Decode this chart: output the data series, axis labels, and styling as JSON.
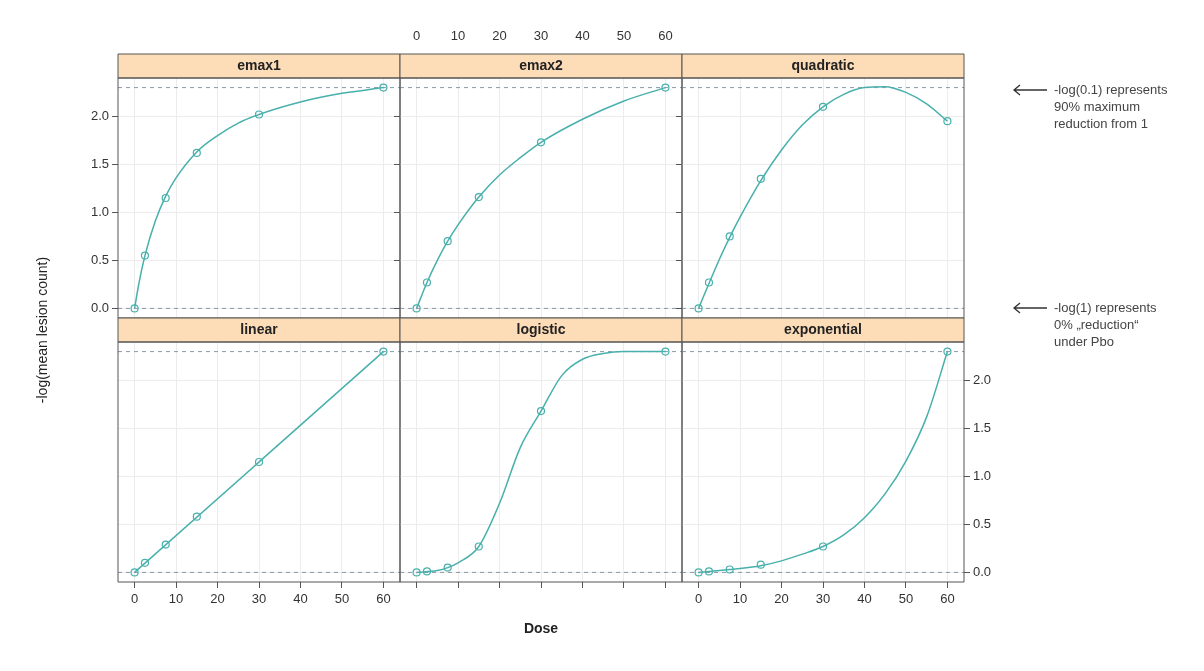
{
  "chart_data": [
    {
      "type": "line",
      "title": "emax1",
      "ylabel": "-log(mean lesion count)",
      "xlim": [
        -4,
        64
      ],
      "xticks": [
        0,
        10,
        20,
        30,
        40,
        50,
        60
      ],
      "ylim": [
        -0.1,
        2.4
      ],
      "yticks": [
        {
          "value": 0,
          "label": "0.0"
        },
        {
          "value": 0.5,
          "label": "0.5"
        },
        {
          "value": 1,
          "label": "1.0"
        },
        {
          "value": 1.5,
          "label": "1.5"
        },
        {
          "value": 2,
          "label": "2.0"
        }
      ],
      "grid": true,
      "tick_labels": "y",
      "ref_lines": [
        {
          "axis": "y",
          "value": 0,
          "color": "#8a98a8",
          "line_style": "dashed"
        },
        {
          "axis": "y",
          "value": 2.3,
          "color": "#8a98a8",
          "line_style": "dashed"
        }
      ],
      "series": [
        {
          "type": "line",
          "marker": "none",
          "color": "#48b0ac",
          "x": [
            0,
            1,
            2.5,
            5,
            7.5,
            10,
            15,
            20,
            25,
            30,
            40,
            50,
            60
          ],
          "values": [
            0,
            0.25,
            0.55,
            0.91,
            1.17,
            1.36,
            1.63,
            1.8,
            1.93,
            2.02,
            2.15,
            2.24,
            2.3
          ]
        },
        {
          "type": "scatter",
          "marker": "circle",
          "color": "#48b0ac",
          "x": [
            0,
            2.5,
            7.5,
            15,
            30,
            60
          ],
          "values": [
            0,
            0.55,
            1.15,
            1.62,
            2.02,
            2.3
          ]
        }
      ]
    },
    {
      "type": "line",
      "title": "emax2",
      "xlim": [
        -4,
        64
      ],
      "xticks": [
        0,
        10,
        20,
        30,
        40,
        50,
        60
      ],
      "ylim": [
        -0.1,
        2.4
      ],
      "yticks": [
        0,
        0.5,
        1,
        1.5,
        2
      ],
      "grid": true,
      "tick_labels": "x",
      "ref_lines": [
        {
          "axis": "y",
          "value": 0,
          "color": "#8a98a8",
          "line_style": "dashed"
        },
        {
          "axis": "y",
          "value": 2.3,
          "color": "#8a98a8",
          "line_style": "dashed"
        }
      ],
      "series": [
        {
          "type": "line",
          "marker": "none",
          "color": "#48b0ac",
          "x": [
            0,
            2.5,
            5,
            7.5,
            10,
            15,
            20,
            25,
            30,
            40,
            50,
            60
          ],
          "values": [
            0,
            0.27,
            0.5,
            0.7,
            0.87,
            1.16,
            1.39,
            1.57,
            1.73,
            1.97,
            2.16,
            2.3
          ]
        },
        {
          "type": "scatter",
          "marker": "circle",
          "color": "#48b0ac",
          "x": [
            0,
            2.5,
            7.5,
            15,
            30,
            60
          ],
          "values": [
            0,
            0.27,
            0.7,
            1.16,
            1.73,
            2.3
          ]
        }
      ]
    },
    {
      "type": "line",
      "title": "quadratic",
      "xlim": [
        -4,
        64
      ],
      "xticks": [
        0,
        10,
        20,
        30,
        40,
        50,
        60
      ],
      "ylim": [
        -0.1,
        2.4
      ],
      "yticks": [
        0,
        0.5,
        1,
        1.5,
        2
      ],
      "grid": true,
      "tick_labels": false,
      "ref_lines": [
        {
          "axis": "y",
          "value": 0,
          "color": "#8a98a8",
          "line_style": "dashed"
        },
        {
          "axis": "y",
          "value": 2.3,
          "color": "#8a98a8",
          "line_style": "dashed"
        }
      ],
      "annotations": [
        "-log(0.1) represents\n90% maximum\nreduction from 1",
        "-log(1) represents\n0% „reduction“\nunder Pbo"
      ],
      "series": [
        {
          "type": "line",
          "marker": "none",
          "color": "#48b0ac",
          "x": [
            0,
            2.5,
            5,
            7.5,
            10,
            15,
            20,
            25,
            30,
            35,
            40,
            45,
            50,
            55,
            60
          ],
          "values": [
            0,
            0.26,
            0.51,
            0.74,
            0.95,
            1.33,
            1.65,
            1.91,
            2.1,
            2.23,
            2.3,
            2.31,
            2.25,
            2.13,
            1.95
          ]
        },
        {
          "type": "scatter",
          "marker": "circle",
          "color": "#48b0ac",
          "x": [
            0,
            2.5,
            7.5,
            15,
            30,
            60
          ],
          "values": [
            0,
            0.27,
            0.75,
            1.35,
            2.1,
            1.95
          ]
        }
      ]
    },
    {
      "type": "line",
      "title": "linear",
      "xlim": [
        -4,
        64
      ],
      "xticks": [
        0,
        10,
        20,
        30,
        40,
        50,
        60
      ],
      "ylim": [
        -0.1,
        2.4
      ],
      "yticks": [
        0,
        0.5,
        1,
        1.5,
        2
      ],
      "grid": true,
      "tick_labels": "x",
      "ref_lines": [
        {
          "axis": "y",
          "value": 0,
          "color": "#8a98a8",
          "line_style": "dashed"
        },
        {
          "axis": "y",
          "value": 2.3,
          "color": "#8a98a8",
          "line_style": "dashed"
        }
      ],
      "series": [
        {
          "type": "line",
          "marker": "none",
          "color": "#48b0ac",
          "x": [
            0,
            60
          ],
          "values": [
            0,
            2.3
          ]
        },
        {
          "type": "scatter",
          "marker": "circle",
          "color": "#48b0ac",
          "x": [
            0,
            2.5,
            7.5,
            15,
            30,
            60
          ],
          "values": [
            0,
            0.1,
            0.29,
            0.58,
            1.15,
            2.3
          ]
        }
      ]
    },
    {
      "type": "line",
      "title": "logistic",
      "xlabel": "Dose",
      "xlim": [
        -4,
        64
      ],
      "xticks": [
        0,
        10,
        20,
        30,
        40,
        50,
        60
      ],
      "ylim": [
        -0.1,
        2.4
      ],
      "yticks": [
        0,
        0.5,
        1,
        1.5,
        2
      ],
      "grid": true,
      "tick_labels": false,
      "ref_lines": [
        {
          "axis": "y",
          "value": 0,
          "color": "#8a98a8",
          "line_style": "dashed"
        },
        {
          "axis": "y",
          "value": 2.3,
          "color": "#8a98a8",
          "line_style": "dashed"
        }
      ],
      "series": [
        {
          "type": "line",
          "marker": "none",
          "color": "#48b0ac",
          "x": [
            0,
            5,
            7.5,
            10,
            15,
            20,
            25,
            30,
            35,
            40,
            45,
            50,
            60
          ],
          "values": [
            0,
            0.02,
            0.05,
            0.1,
            0.27,
            0.72,
            1.3,
            1.68,
            2.05,
            2.22,
            2.28,
            2.3,
            2.3
          ]
        },
        {
          "type": "scatter",
          "marker": "circle",
          "color": "#48b0ac",
          "x": [
            0,
            2.5,
            7.5,
            15,
            30,
            60
          ],
          "values": [
            0,
            0.01,
            0.05,
            0.27,
            1.68,
            2.3
          ]
        }
      ]
    },
    {
      "type": "line",
      "title": "exponential",
      "xlim": [
        -4,
        64
      ],
      "xticks": [
        0,
        10,
        20,
        30,
        40,
        50,
        60
      ],
      "ylim": [
        -0.1,
        2.4
      ],
      "yticks": [
        {
          "value": 0,
          "label": "0.0"
        },
        {
          "value": 0.5,
          "label": "0.5"
        },
        {
          "value": 1,
          "label": "1.0"
        },
        {
          "value": 1.5,
          "label": "1.5"
        },
        {
          "value": 2,
          "label": "2.0"
        }
      ],
      "grid": true,
      "ref_lines": [
        {
          "axis": "y",
          "value": 0,
          "color": "#8a98a8",
          "line_style": "dashed"
        },
        {
          "axis": "y",
          "value": 2.3,
          "color": "#8a98a8",
          "line_style": "dashed"
        }
      ],
      "series": [
        {
          "type": "line",
          "marker": "none",
          "color": "#48b0ac",
          "x": [
            0,
            7.5,
            10,
            15,
            20,
            25,
            30,
            35,
            40,
            45,
            50,
            55,
            60
          ],
          "values": [
            0,
            0.03,
            0.04,
            0.07,
            0.12,
            0.19,
            0.27,
            0.39,
            0.57,
            0.82,
            1.16,
            1.62,
            2.3
          ]
        },
        {
          "type": "scatter",
          "marker": "circle",
          "color": "#48b0ac",
          "x": [
            0,
            2.5,
            7.5,
            15,
            30,
            60
          ],
          "values": [
            0,
            0.01,
            0.03,
            0.08,
            0.27,
            2.3
          ]
        }
      ]
    }
  ]
}
